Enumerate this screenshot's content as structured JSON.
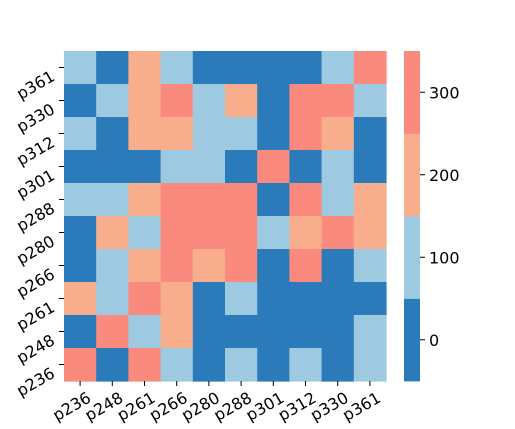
{
  "chart_data": {
    "type": "heatmap",
    "title": "",
    "xlabel": "",
    "ylabel": "",
    "x_labels": [
      "p236",
      "p248",
      "p261",
      "p266",
      "p280",
      "p288",
      "p301",
      "p312",
      "p330",
      "p361"
    ],
    "y_labels_top_to_bottom": [
      "p361",
      "p330",
      "p312",
      "p301",
      "p288",
      "p280",
      "p266",
      "p261",
      "p248",
      "p236"
    ],
    "matrix": [
      [
        100,
        0,
        200,
        100,
        0,
        0,
        0,
        0,
        100,
        300
      ],
      [
        0,
        100,
        200,
        300,
        100,
        200,
        0,
        300,
        300,
        100
      ],
      [
        100,
        0,
        200,
        200,
        100,
        100,
        0,
        300,
        200,
        0
      ],
      [
        0,
        0,
        0,
        100,
        100,
        0,
        300,
        0,
        100,
        0
      ],
      [
        100,
        100,
        200,
        300,
        300,
        300,
        0,
        300,
        100,
        200
      ],
      [
        0,
        200,
        100,
        300,
        300,
        300,
        100,
        200,
        300,
        200
      ],
      [
        0,
        100,
        200,
        300,
        200,
        300,
        0,
        300,
        0,
        100
      ],
      [
        200,
        100,
        300,
        200,
        0,
        100,
        0,
        0,
        0,
        0
      ],
      [
        0,
        300,
        100,
        200,
        0,
        0,
        0,
        0,
        0,
        100
      ],
      [
        300,
        0,
        300,
        100,
        0,
        100,
        0,
        100,
        0,
        100
      ]
    ],
    "colorbar": {
      "ticks": [
        0,
        100,
        200,
        300
      ],
      "vmin": -50,
      "vmax": 350,
      "bands": [
        {
          "from": -50,
          "to": 50,
          "color": "#2b7bba"
        },
        {
          "from": 50,
          "to": 150,
          "color": "#9ecae1"
        },
        {
          "from": 150,
          "to": 250,
          "color": "#f8ae8c"
        },
        {
          "from": 250,
          "to": 350,
          "color": "#fa8a7e"
        }
      ]
    },
    "grid": false,
    "legend": "colorbar-right"
  }
}
